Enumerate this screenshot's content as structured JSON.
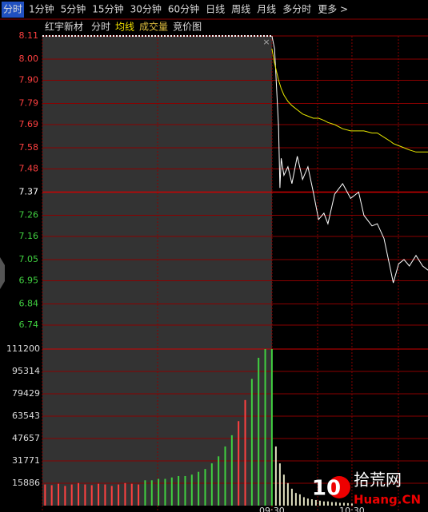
{
  "toolbar": {
    "tabs": [
      "分时",
      "1分钟",
      "5分钟",
      "15分钟",
      "30分钟",
      "60分钟",
      "日线",
      "周线",
      "月线",
      "多分时",
      "更多 >"
    ]
  },
  "header": {
    "stock": "红宇新材",
    "items": [
      "分时",
      "均线",
      "成交量",
      "竞价图"
    ]
  },
  "watermark": {
    "logo": "10",
    "site": "拾荒网",
    "domain": "Huang.CN"
  },
  "chart_data": [
    {
      "type": "line",
      "xlim": [
        -172,
        117
      ],
      "xticks": [
        {
          "value": 0,
          "label": "09:30"
        },
        {
          "value": 60,
          "label": "10:30"
        }
      ],
      "ylim": [
        6.63,
        8.11
      ],
      "yticks": [
        8.11,
        {
          "value": 8.0,
          "label": "8.00"
        },
        {
          "value": 7.9,
          "label": "7.90"
        },
        7.79,
        7.69,
        7.58,
        7.48,
        7.37,
        7.26,
        7.16,
        7.05,
        6.95,
        6.84,
        6.74
      ],
      "reference": 7.37,
      "grid": true,
      "x": [
        0,
        2,
        5,
        6,
        7,
        9,
        12,
        15,
        19,
        23,
        27,
        31,
        35,
        39,
        42,
        47,
        53,
        59,
        65,
        69,
        75,
        79,
        84,
        89,
        91,
        95,
        99,
        103,
        108,
        113,
        117
      ],
      "series": [
        {
          "color": "#ffffff",
          "values": [
            8.11,
            8.05,
            7.68,
            7.39,
            7.53,
            7.45,
            7.49,
            7.41,
            7.54,
            7.43,
            7.49,
            7.37,
            7.24,
            7.27,
            7.22,
            7.36,
            7.41,
            7.34,
            7.37,
            7.26,
            7.21,
            7.22,
            7.15,
            7.0,
            6.94,
            7.03,
            7.05,
            7.02,
            7.07,
            7.02,
            7.0
          ]
        },
        {
          "color": "#e8e800",
          "values": [
            8.05,
            7.98,
            7.9,
            7.88,
            7.86,
            7.83,
            7.8,
            7.78,
            7.76,
            7.74,
            7.73,
            7.72,
            7.72,
            7.71,
            7.7,
            7.69,
            7.67,
            7.66,
            7.66,
            7.66,
            7.65,
            7.65,
            7.63,
            7.61,
            7.6,
            7.59,
            7.58,
            7.57,
            7.56,
            7.56,
            7.56
          ]
        }
      ]
    },
    {
      "type": "bar",
      "ylim": [
        0,
        111200
      ],
      "yticks": [
        111200,
        95314,
        79429,
        63543,
        47657,
        31771,
        15886
      ],
      "grid": true,
      "x": [
        -170,
        -165,
        -160,
        -155,
        -150,
        -145,
        -140,
        -135,
        -130,
        -125,
        -120,
        -115,
        -110,
        -105,
        -100,
        -95,
        -90,
        -85,
        -80,
        -75,
        -70,
        -65,
        -60,
        -55,
        -50,
        -45,
        -40,
        -35,
        -30,
        -25,
        -20,
        -15,
        -10,
        -5,
        0,
        3,
        6,
        9,
        12,
        15,
        18,
        21,
        24,
        27,
        30,
        33,
        36,
        39,
        42,
        45,
        48,
        51,
        54,
        57,
        60
      ],
      "values": [
        15000,
        14500,
        15500,
        14000,
        15000,
        16000,
        15000,
        14500,
        15500,
        15000,
        14000,
        15000,
        16000,
        15500,
        15000,
        18000,
        18000,
        19000,
        19000,
        20000,
        21000,
        21000,
        22000,
        24000,
        26000,
        30000,
        35000,
        42000,
        50000,
        60000,
        75000,
        90000,
        105000,
        111200,
        111200,
        42000,
        30000,
        22000,
        16000,
        12000,
        9000,
        8000,
        6000,
        5000,
        4500,
        4000,
        3500,
        3000,
        3000,
        2500,
        2500,
        2000,
        2000,
        1800,
        1500
      ],
      "colors": [
        "#ff4040",
        "#ff4040",
        "#ff4040",
        "#ff4040",
        "#ff4040",
        "#ff4040",
        "#ff4040",
        "#ff4040",
        "#ff4040",
        "#ff4040",
        "#ff4040",
        "#ff4040",
        "#ff4040",
        "#ff4040",
        "#ff4040",
        "#40d040",
        "#40d040",
        "#40d040",
        "#40d040",
        "#40d040",
        "#40d040",
        "#40d040",
        "#40d040",
        "#40d040",
        "#40d040",
        "#40d040",
        "#40d040",
        "#40d040",
        "#40d040",
        "#ff4040",
        "#ff4040",
        "#40d040",
        "#40d040",
        "#40d040",
        "#40d040",
        "#e0e0c0",
        "#e0e0c0",
        "#e0e0c0",
        "#e0e0c0",
        "#e0e0c0",
        "#e0e0c0",
        "#e0e0c0",
        "#e0e0c0",
        "#e0e0c0",
        "#e0e0c0",
        "#e0e0c0",
        "#e0e0c0",
        "#e0e0c0",
        "#e0e0c0",
        "#e0e0c0",
        "#e0e0c0",
        "#e0e0c0",
        "#e0e0c0",
        "#e0e0c0",
        "#e0e0c0"
      ]
    }
  ]
}
